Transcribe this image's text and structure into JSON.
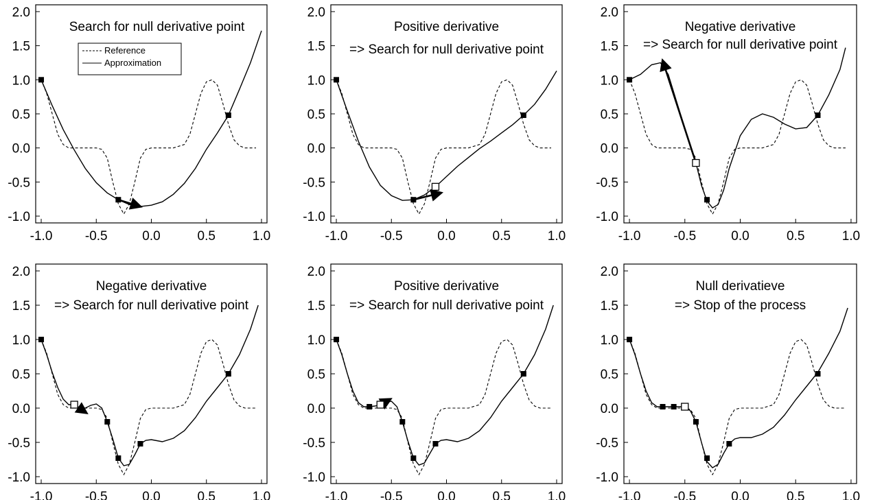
{
  "chart_data": [
    {
      "type": "line",
      "title_lines": [
        "Search for null derivative point"
      ],
      "xlim": [
        -1.05,
        1.05
      ],
      "ylim": [
        -1.1,
        2.1
      ],
      "xticks": [
        -1.0,
        -0.5,
        0.0,
        0.5,
        1.0
      ],
      "xtick_labels": [
        "-1.0",
        "-0.5",
        "0.0",
        "0.5",
        "1.0"
      ],
      "yticks": [
        -1.0,
        -0.5,
        0.0,
        0.5,
        1.0,
        1.5,
        2.0
      ],
      "ytick_labels": [
        "-1.0",
        "-0.5",
        "0.0",
        "0.5",
        "1.0",
        "1.5",
        "2.0"
      ],
      "legend": {
        "entries": [
          {
            "label": "Reference",
            "style": "dashed"
          },
          {
            "label": "Approximation",
            "style": "solid"
          }
        ],
        "position": "upper-left"
      },
      "series": [
        {
          "name": "Approximation",
          "style": "solid",
          "x": [
            -1.0,
            -0.9,
            -0.8,
            -0.7,
            -0.6,
            -0.5,
            -0.4,
            -0.3,
            -0.2,
            -0.1,
            0.0,
            0.1,
            0.2,
            0.3,
            0.4,
            0.5,
            0.6,
            0.7,
            0.8,
            0.9,
            1.0
          ],
          "y": [
            1.0,
            0.62,
            0.27,
            -0.03,
            -0.3,
            -0.51,
            -0.66,
            -0.76,
            -0.83,
            -0.86,
            -0.84,
            -0.79,
            -0.68,
            -0.52,
            -0.3,
            -0.02,
            0.22,
            0.48,
            0.86,
            1.25,
            1.72
          ]
        }
      ],
      "sample_points": [
        {
          "x": -1.0,
          "y": 1.0
        },
        {
          "x": -0.3,
          "y": -0.76
        },
        {
          "x": 0.7,
          "y": 0.48
        }
      ],
      "current_point": null,
      "arrow": {
        "from": [
          -0.3,
          -0.76
        ],
        "to": [
          -0.1,
          -0.86
        ]
      }
    },
    {
      "type": "line",
      "title_lines": [
        "Positive derivative",
        "=> Search for null derivative point"
      ],
      "xlim": [
        -1.05,
        1.05
      ],
      "ylim": [
        -1.1,
        2.1
      ],
      "xticks": [
        -1.0,
        -0.5,
        0.0,
        0.5,
        1.0
      ],
      "xtick_labels": [
        "-1.0",
        "-0.5",
        "0.0",
        "0.5",
        "1.0"
      ],
      "yticks": [
        -1.0,
        -0.5,
        0.0,
        0.5,
        1.0,
        1.5,
        2.0
      ],
      "ytick_labels": [
        "-1.0",
        "-0.5",
        "0.0",
        "0.5",
        "1.0",
        "1.5",
        "2.0"
      ],
      "series": [
        {
          "name": "Approximation",
          "style": "solid",
          "x": [
            -1.0,
            -0.9,
            -0.8,
            -0.7,
            -0.6,
            -0.5,
            -0.4,
            -0.3,
            -0.2,
            -0.1,
            0.0,
            0.1,
            0.2,
            0.3,
            0.4,
            0.5,
            0.6,
            0.7,
            0.8,
            0.9,
            1.0
          ],
          "y": [
            1.0,
            0.54,
            0.1,
            -0.28,
            -0.55,
            -0.7,
            -0.77,
            -0.76,
            -0.69,
            -0.57,
            -0.42,
            -0.27,
            -0.14,
            -0.01,
            0.1,
            0.22,
            0.34,
            0.48,
            0.64,
            0.86,
            1.13
          ]
        }
      ],
      "sample_points": [
        {
          "x": -1.0,
          "y": 1.0
        },
        {
          "x": -0.3,
          "y": -0.76
        },
        {
          "x": 0.7,
          "y": 0.48
        }
      ],
      "current_point": {
        "x": -0.1,
        "y": -0.57
      },
      "arrow": {
        "from": [
          -0.3,
          -0.76
        ],
        "to": [
          -0.05,
          -0.66
        ]
      }
    },
    {
      "type": "line",
      "title_lines": [
        "Negative derivative",
        "=> Search for null derivative point"
      ],
      "xlim": [
        -1.05,
        1.05
      ],
      "ylim": [
        -1.1,
        2.1
      ],
      "xticks": [
        -1.0,
        -0.5,
        0.0,
        0.5,
        1.0
      ],
      "xtick_labels": [
        "-1.0",
        "-0.5",
        "0.0",
        "0.5",
        "1.0"
      ],
      "yticks": [
        -1.0,
        -0.5,
        0.0,
        0.5,
        1.0,
        1.5,
        2.0
      ],
      "ytick_labels": [
        "-1.0",
        "-0.5",
        "0.0",
        "0.5",
        "1.0",
        "1.5",
        "2.0"
      ],
      "series": [
        {
          "name": "Approximation",
          "style": "solid",
          "x": [
            -1.0,
            -0.9,
            -0.8,
            -0.72,
            -0.65,
            -0.55,
            -0.45,
            -0.4,
            -0.35,
            -0.3,
            -0.25,
            -0.2,
            -0.15,
            -0.1,
            0.0,
            0.1,
            0.2,
            0.3,
            0.4,
            0.5,
            0.6,
            0.7,
            0.8,
            0.9,
            0.95
          ],
          "y": [
            1.0,
            1.08,
            1.22,
            1.25,
            1.08,
            0.55,
            0.02,
            -0.22,
            -0.55,
            -0.78,
            -0.88,
            -0.83,
            -0.62,
            -0.3,
            0.18,
            0.42,
            0.5,
            0.45,
            0.35,
            0.28,
            0.3,
            0.48,
            0.78,
            1.15,
            1.47
          ]
        }
      ],
      "sample_points": [
        {
          "x": -1.0,
          "y": 1.0
        },
        {
          "x": -0.3,
          "y": -0.76
        },
        {
          "x": 0.7,
          "y": 0.48
        }
      ],
      "current_point": {
        "x": -0.4,
        "y": -0.22
      },
      "arrow": {
        "from": [
          -0.4,
          -0.22
        ],
        "to": [
          -0.7,
          1.28
        ]
      }
    },
    {
      "type": "line",
      "title_lines": [
        "Negative derivative",
        "=> Search for null derivative point"
      ],
      "xlim": [
        -1.05,
        1.05
      ],
      "ylim": [
        -1.1,
        2.1
      ],
      "xticks": [
        -1.0,
        -0.5,
        0.0,
        0.5,
        1.0
      ],
      "xtick_labels": [
        "-1.0",
        "-0.5",
        "0.0",
        "0.5",
        "1.0"
      ],
      "yticks": [
        -1.0,
        -0.5,
        0.0,
        0.5,
        1.0,
        1.5,
        2.0
      ],
      "ytick_labels": [
        "-1.0",
        "-0.5",
        "0.0",
        "0.5",
        "1.0",
        "1.5",
        "2.0"
      ],
      "series": [
        {
          "name": "Approximation",
          "style": "solid",
          "x": [
            -1.0,
            -0.95,
            -0.9,
            -0.85,
            -0.8,
            -0.75,
            -0.7,
            -0.65,
            -0.6,
            -0.55,
            -0.5,
            -0.45,
            -0.4,
            -0.35,
            -0.3,
            -0.25,
            -0.2,
            -0.15,
            -0.1,
            -0.05,
            0.0,
            0.1,
            0.2,
            0.3,
            0.4,
            0.5,
            0.6,
            0.7,
            0.8,
            0.9,
            0.97
          ],
          "y": [
            1.0,
            0.78,
            0.52,
            0.3,
            0.13,
            0.05,
            0.05,
            0.0,
            0.0,
            0.04,
            0.06,
            0.0,
            -0.2,
            -0.45,
            -0.73,
            -0.84,
            -0.82,
            -0.68,
            -0.52,
            -0.47,
            -0.46,
            -0.49,
            -0.44,
            -0.33,
            -0.14,
            0.1,
            0.3,
            0.5,
            0.78,
            1.15,
            1.5
          ]
        }
      ],
      "sample_points": [
        {
          "x": -1.0,
          "y": 1.0
        },
        {
          "x": -0.4,
          "y": -0.2
        },
        {
          "x": -0.3,
          "y": -0.73
        },
        {
          "x": -0.1,
          "y": -0.52
        },
        {
          "x": 0.7,
          "y": 0.5
        }
      ],
      "current_point": {
        "x": -0.7,
        "y": 0.05
      },
      "arrow": {
        "from": [
          -0.7,
          0.05
        ],
        "to": [
          -0.59,
          -0.07
        ]
      }
    },
    {
      "type": "line",
      "title_lines": [
        "Positive derivative",
        "=> Search for null derivative point"
      ],
      "xlim": [
        -1.05,
        1.05
      ],
      "ylim": [
        -1.1,
        2.1
      ],
      "xticks": [
        -1.0,
        -0.5,
        0.0,
        0.5,
        1.0
      ],
      "xtick_labels": [
        "-1.0",
        "-0.5",
        "0.0",
        "0.5",
        "1.0"
      ],
      "yticks": [
        -1.0,
        -0.5,
        0.0,
        0.5,
        1.0,
        1.5,
        2.0
      ],
      "ytick_labels": [
        "-1.0",
        "-0.5",
        "0.0",
        "0.5",
        "1.0",
        "1.5",
        "2.0"
      ],
      "series": [
        {
          "name": "Approximation",
          "style": "solid",
          "x": [
            -1.0,
            -0.95,
            -0.9,
            -0.85,
            -0.8,
            -0.75,
            -0.7,
            -0.65,
            -0.6,
            -0.55,
            -0.5,
            -0.45,
            -0.4,
            -0.35,
            -0.3,
            -0.25,
            -0.2,
            -0.15,
            -0.1,
            -0.05,
            0.0,
            0.1,
            0.2,
            0.3,
            0.4,
            0.5,
            0.6,
            0.7,
            0.8,
            0.9,
            0.97
          ],
          "y": [
            1.0,
            0.78,
            0.5,
            0.25,
            0.08,
            0.02,
            0.02,
            0.03,
            0.05,
            0.08,
            0.1,
            0.02,
            -0.2,
            -0.48,
            -0.73,
            -0.83,
            -0.8,
            -0.66,
            -0.52,
            -0.47,
            -0.46,
            -0.49,
            -0.44,
            -0.33,
            -0.14,
            0.1,
            0.3,
            0.5,
            0.78,
            1.15,
            1.5
          ]
        }
      ],
      "sample_points": [
        {
          "x": -1.0,
          "y": 1.0
        },
        {
          "x": -0.7,
          "y": 0.02
        },
        {
          "x": -0.4,
          "y": -0.2
        },
        {
          "x": -0.3,
          "y": -0.73
        },
        {
          "x": -0.1,
          "y": -0.52
        },
        {
          "x": 0.7,
          "y": 0.5
        }
      ],
      "current_point": {
        "x": -0.6,
        "y": 0.05
      },
      "arrow": {
        "from": [
          -0.6,
          0.05
        ],
        "to": [
          -0.51,
          0.13
        ]
      }
    },
    {
      "type": "line",
      "title_lines": [
        "Null derivatieve",
        "=> Stop of the process"
      ],
      "xlim": [
        -1.05,
        1.05
      ],
      "ylim": [
        -1.1,
        2.1
      ],
      "xticks": [
        -1.0,
        -0.5,
        0.0,
        0.5,
        1.0
      ],
      "xtick_labels": [
        "-1.0",
        "-0.5",
        "0.0",
        "0.5",
        "1.0"
      ],
      "yticks": [
        -1.0,
        -0.5,
        0.0,
        0.5,
        1.0,
        1.5,
        2.0
      ],
      "ytick_labels": [
        "-1.0",
        "-0.5",
        "0.0",
        "0.5",
        "1.0",
        "1.5",
        "2.0"
      ],
      "series": [
        {
          "name": "Approximation",
          "style": "solid",
          "x": [
            -1.0,
            -0.95,
            -0.9,
            -0.85,
            -0.8,
            -0.75,
            -0.7,
            -0.65,
            -0.6,
            -0.55,
            -0.5,
            -0.45,
            -0.4,
            -0.35,
            -0.3,
            -0.25,
            -0.2,
            -0.15,
            -0.1,
            -0.05,
            0.0,
            0.1,
            0.2,
            0.3,
            0.4,
            0.5,
            0.6,
            0.7,
            0.8,
            0.9,
            0.97
          ],
          "y": [
            1.0,
            0.78,
            0.5,
            0.25,
            0.08,
            0.02,
            0.02,
            0.02,
            0.02,
            0.02,
            0.02,
            -0.04,
            -0.2,
            -0.5,
            -0.78,
            -0.87,
            -0.82,
            -0.66,
            -0.52,
            -0.45,
            -0.43,
            -0.43,
            -0.38,
            -0.28,
            -0.1,
            0.12,
            0.32,
            0.52,
            0.8,
            1.12,
            1.46
          ]
        }
      ],
      "sample_points": [
        {
          "x": -1.0,
          "y": 1.0
        },
        {
          "x": -0.7,
          "y": 0.02
        },
        {
          "x": -0.6,
          "y": 0.02
        },
        {
          "x": -0.4,
          "y": -0.2
        },
        {
          "x": -0.3,
          "y": -0.73
        },
        {
          "x": -0.1,
          "y": -0.52
        },
        {
          "x": 0.7,
          "y": 0.5
        }
      ],
      "current_point": {
        "x": -0.5,
        "y": 0.02
      },
      "arrow": null
    }
  ],
  "reference_curve": {
    "name": "Reference",
    "style": "dashed",
    "x": [
      -1.0,
      -0.95,
      -0.9,
      -0.85,
      -0.8,
      -0.75,
      -0.7,
      -0.65,
      -0.6,
      -0.55,
      -0.5,
      -0.45,
      -0.4,
      -0.35,
      -0.3,
      -0.25,
      -0.2,
      -0.15,
      -0.1,
      -0.05,
      0.0,
      0.1,
      0.2,
      0.3,
      0.35,
      0.4,
      0.45,
      0.5,
      0.55,
      0.6,
      0.65,
      0.7,
      0.75,
      0.8,
      0.85,
      0.9,
      0.95
    ],
    "y": [
      1.0,
      0.8,
      0.5,
      0.2,
      0.05,
      0.0,
      0.0,
      0.0,
      0.0,
      0.0,
      0.0,
      -0.02,
      -0.15,
      -0.5,
      -0.82,
      -0.97,
      -0.82,
      -0.5,
      -0.15,
      -0.02,
      0.0,
      0.0,
      0.0,
      0.05,
      0.2,
      0.5,
      0.8,
      0.97,
      1.0,
      0.92,
      0.65,
      0.35,
      0.12,
      0.03,
      0.0,
      0.0,
      0.0
    ]
  }
}
